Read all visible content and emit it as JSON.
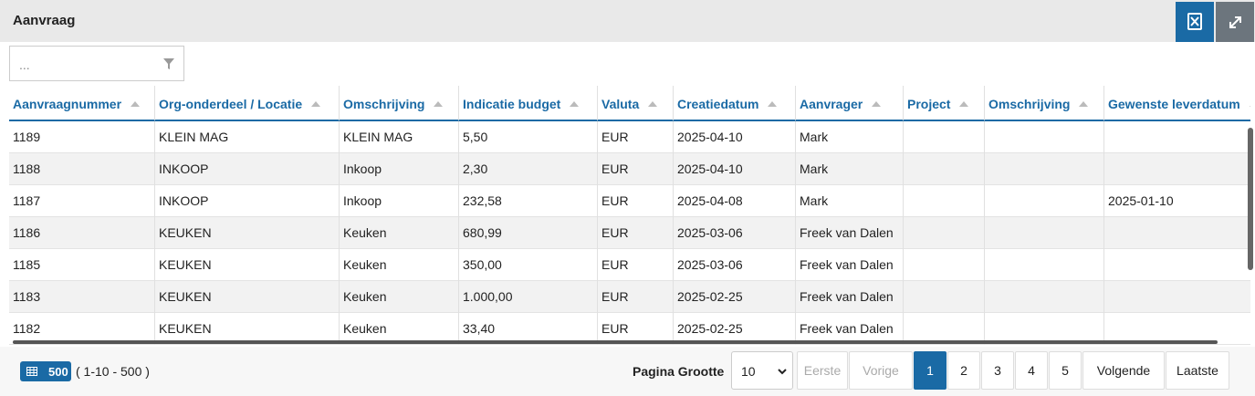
{
  "header": {
    "title": "Aanvraag"
  },
  "filter": {
    "placeholder": "..."
  },
  "table": {
    "columns": [
      "Aanvraagnummer",
      "Org-onderdeel / Locatie",
      "Omschrijving",
      "Indicatie budget",
      "Valuta",
      "Creatiedatum",
      "Aanvrager",
      "Project",
      "Omschrijving",
      "Gewenste leverdatum"
    ],
    "rows": [
      [
        "1189",
        "KLEIN MAG",
        "KLEIN MAG",
        "5,50",
        "EUR",
        "2025-04-10",
        "Mark",
        null,
        null,
        null
      ],
      [
        "1188",
        "INKOOP",
        "Inkoop",
        "2,30",
        "EUR",
        "2025-04-10",
        "Mark",
        null,
        null,
        null
      ],
      [
        "1187",
        "INKOOP",
        "Inkoop",
        "232,58",
        "EUR",
        "2025-04-08",
        "Mark",
        null,
        null,
        "2025-01-10"
      ],
      [
        "1186",
        "KEUKEN",
        "Keuken",
        "680,99",
        "EUR",
        "2025-03-06",
        "Freek van Dalen",
        null,
        null,
        null
      ],
      [
        "1185",
        "KEUKEN",
        "Keuken",
        "350,00",
        "EUR",
        "2025-03-06",
        "Freek van Dalen",
        null,
        null,
        null
      ],
      [
        "1183",
        "KEUKEN",
        "Keuken",
        "1.000,00",
        "EUR",
        "2025-02-25",
        "Freek van Dalen",
        null,
        null,
        null
      ],
      [
        "1182",
        "KEUKEN",
        "Keuken",
        "33,40",
        "EUR",
        "2025-02-25",
        "Freek van Dalen",
        null,
        null,
        null
      ]
    ]
  },
  "footer": {
    "total_badge": "500",
    "range": "( 1-10 - 500 )",
    "page_size_label": "Pagina Grootte",
    "page_size": "10",
    "buttons": [
      {
        "label": "Eerste",
        "state": "disabled"
      },
      {
        "label": "Vorige",
        "state": "disabled"
      },
      {
        "label": "1",
        "state": "active"
      },
      {
        "label": "2",
        "state": "normal"
      },
      {
        "label": "3",
        "state": "normal"
      },
      {
        "label": "4",
        "state": "normal"
      },
      {
        "label": "5",
        "state": "normal"
      },
      {
        "label": "Volgende",
        "state": "normal"
      },
      {
        "label": "Laatste",
        "state": "normal"
      }
    ]
  }
}
